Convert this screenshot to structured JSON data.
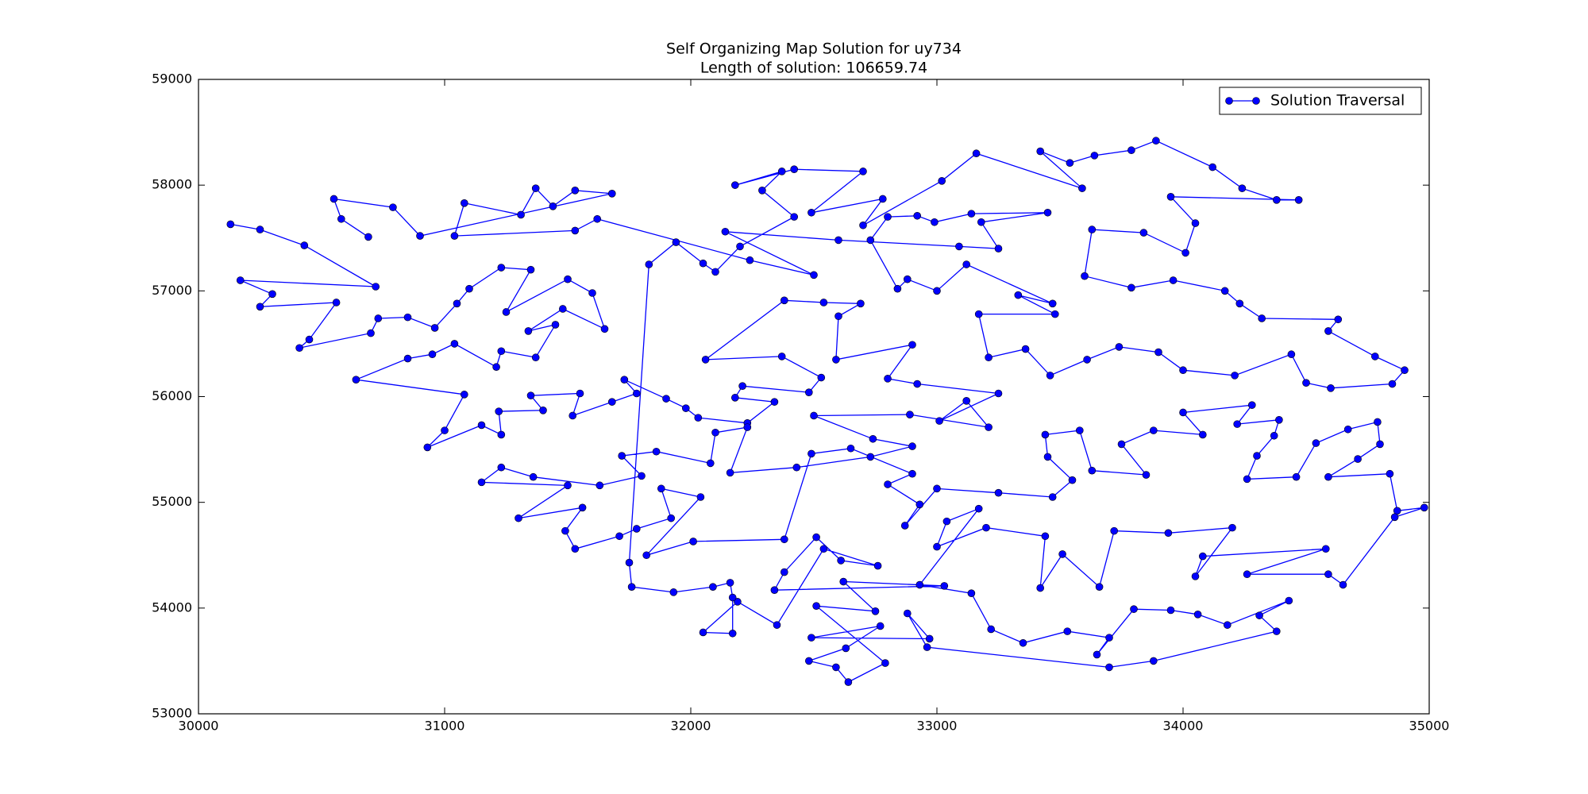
{
  "chart_data": {
    "type": "line",
    "title": "Self Organizing Map Solution for uy734",
    "subtitle": "Length of solution: 106659.74",
    "series": [
      {
        "name": "Solution Traversal",
        "color": "#0000ff",
        "x": [
          30130,
          30250,
          30430,
          30720,
          30170,
          30300,
          30250,
          30560,
          30450,
          30410,
          30700,
          30730,
          30850,
          30960,
          31050,
          31100,
          31230,
          31350,
          31250,
          31500,
          31600,
          31650,
          31480,
          31340,
          31450,
          31370,
          31230,
          31210,
          31040,
          30950,
          30850,
          30640,
          31080,
          31000,
          30930,
          31150,
          31230,
          31220,
          31400,
          31350,
          31550,
          31520,
          31680,
          31780,
          31730,
          31900,
          31980,
          32030,
          32230,
          32340,
          32180,
          32210,
          32480,
          32530,
          32370,
          32060,
          32380,
          32540,
          32690,
          32600,
          32590,
          32900,
          32800,
          32920,
          33250,
          33010,
          33120,
          33210,
          32890,
          32500,
          32740,
          32900,
          32730,
          32430,
          32160,
          32230,
          32100,
          32080,
          31860,
          31720,
          31800,
          31630,
          31360,
          31230,
          31150,
          31500,
          31300,
          31560,
          31490,
          31530,
          31710,
          31780,
          31920,
          31880,
          32040,
          31820,
          32010,
          32380,
          32490,
          32650,
          32900,
          32800,
          32930,
          32870,
          33000,
          33250,
          33470,
          33550,
          33450,
          33440,
          33580,
          33630,
          33850,
          33750,
          33880,
          34080,
          34000,
          34280,
          34220,
          34390,
          34370,
          34300,
          34260,
          34460,
          34540,
          34670,
          34790,
          34800,
          34710,
          34590,
          34840,
          34870,
          34980,
          34860,
          34650,
          34590,
          34260,
          34580,
          34080,
          34050,
          34200,
          33940,
          33720,
          33660,
          33510,
          33420,
          33440,
          33200,
          33000,
          33040,
          33170,
          32930,
          33140,
          33220,
          33350,
          33530,
          33700,
          33650,
          33800,
          33950,
          34060,
          34180,
          34430,
          34310,
          34380,
          33880,
          33700,
          32960,
          32880,
          32970,
          32490,
          32770,
          32630,
          32480,
          32590,
          32640,
          32790,
          32510,
          32750,
          32620,
          33030,
          32340,
          32380,
          32510,
          32610,
          32760,
          32540,
          32350,
          32190,
          32050,
          32170,
          32170,
          32160,
          32090,
          31930,
          31760,
          31750,
          31830,
          31940,
          32050,
          32100,
          32200,
          32420,
          32290,
          32370,
          32180,
          32420,
          32700,
          32490,
          32780,
          32700,
          33020,
          33160,
          33590,
          33420,
          33540,
          33640,
          33790,
          33890,
          34120,
          34240,
          34380,
          34470,
          33950,
          34050,
          34010,
          33840,
          33630,
          33600,
          33790,
          33960,
          34170,
          34230,
          34320,
          34630,
          34590,
          34780,
          34900,
          34850,
          34600,
          34500,
          34440,
          34210,
          34000,
          33900,
          33740,
          33610,
          33460,
          33360,
          33210,
          33170,
          33480,
          33330,
          33470,
          33120,
          33000,
          32880,
          32840,
          32730,
          32800,
          32920,
          32990,
          33140,
          33450,
          33180,
          33250,
          33090,
          32600,
          32140,
          32500,
          32240,
          31620,
          31530,
          31040,
          31080,
          31310,
          31370,
          31440,
          31530,
          31680,
          30900,
          30790,
          30550,
          30580,
          30690
        ],
        "values": [
          57630,
          57580,
          57430,
          57040,
          57100,
          56970,
          56850,
          56890,
          56540,
          56460,
          56600,
          56740,
          56750,
          56650,
          56880,
          57020,
          57220,
          57200,
          56800,
          57110,
          56980,
          56640,
          56830,
          56620,
          56680,
          56370,
          56430,
          56280,
          56500,
          56400,
          56360,
          56160,
          56020,
          55680,
          55520,
          55730,
          55640,
          55860,
          55870,
          56010,
          56030,
          55820,
          55950,
          56030,
          56160,
          55980,
          55890,
          55800,
          55750,
          55950,
          55990,
          56100,
          56040,
          56180,
          56380,
          56350,
          56910,
          56890,
          56880,
          56760,
          56350,
          56490,
          56170,
          56120,
          56030,
          55770,
          55960,
          55710,
          55830,
          55820,
          55600,
          55530,
          55430,
          55330,
          55280,
          55710,
          55660,
          55370,
          55480,
          55440,
          55250,
          55160,
          55240,
          55330,
          55190,
          55160,
          54850,
          54950,
          54730,
          54560,
          54680,
          54750,
          54850,
          55130,
          55050,
          54500,
          54630,
          54650,
          55460,
          55510,
          55270,
          55170,
          54980,
          54780,
          55130,
          55090,
          55050,
          55210,
          55430,
          55640,
          55680,
          55300,
          55260,
          55550,
          55680,
          55640,
          55850,
          55920,
          55740,
          55780,
          55630,
          55440,
          55220,
          55240,
          55560,
          55690,
          55760,
          55550,
          55410,
          55240,
          55270,
          54920,
          54950,
          54860,
          54220,
          54320,
          54320,
          54560,
          54490,
          54300,
          54760,
          54710,
          54730,
          54200,
          54510,
          54190,
          54680,
          54760,
          54580,
          54820,
          54940,
          54220,
          54140,
          53800,
          53670,
          53780,
          53720,
          53560,
          53990,
          53980,
          53940,
          53840,
          54070,
          53930,
          53780,
          53500,
          53440,
          53630,
          53950,
          53710,
          53720,
          53830,
          53620,
          53500,
          53440,
          53300,
          53480,
          54020,
          53970,
          54250,
          54210,
          54170,
          54340,
          54670,
          54450,
          54400,
          54560,
          53840,
          54060,
          53770,
          53760,
          54100,
          54240,
          54200,
          54150,
          54200,
          54430,
          57250,
          57460,
          57260,
          57180,
          57420,
          57700,
          57950,
          58130,
          58000,
          58150,
          58130,
          57740,
          57870,
          57620,
          58040,
          58300,
          57970,
          58320,
          58210,
          58280,
          58330,
          58420,
          58170,
          57970,
          57860,
          57860,
          57890,
          57640,
          57360,
          57550,
          57580,
          57140,
          57030,
          57100,
          57000,
          56880,
          56740,
          56730,
          56620,
          56380,
          56250,
          56120,
          56080,
          56130,
          56400,
          56200,
          56250,
          56420,
          56470,
          56350,
          56200,
          56450,
          56370,
          56780,
          56780,
          56960,
          56880,
          57250,
          57000,
          57110,
          57020,
          57480,
          57700,
          57710,
          57650,
          57730,
          57740,
          57650,
          57400,
          57420,
          57480,
          57560,
          57150,
          57290,
          57680,
          57570,
          57520,
          57830,
          57720,
          57970,
          57800,
          57950,
          57920,
          57520,
          57790,
          57870,
          57680,
          57510
        ]
      }
    ],
    "xlim": [
      30000,
      35000
    ],
    "ylim": [
      53000,
      59000
    ],
    "xticks": [
      30000,
      31000,
      32000,
      33000,
      34000,
      35000
    ],
    "yticks": [
      53000,
      54000,
      55000,
      56000,
      57000,
      58000,
      59000
    ],
    "legend": "upper right"
  }
}
